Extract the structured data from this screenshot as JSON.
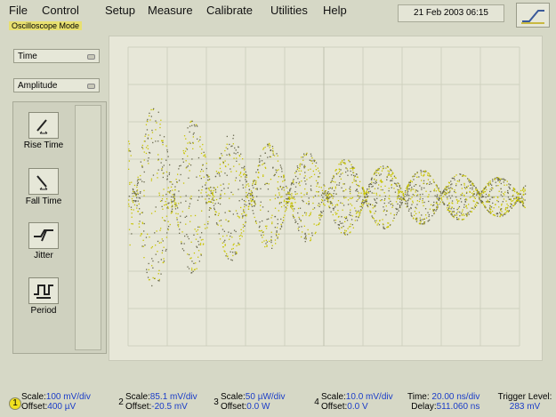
{
  "menu": [
    "File",
    "Control",
    "Setup",
    "Measure",
    "Calibrate",
    "Utilities",
    "Help"
  ],
  "datetime": "21 Feb 2003  06:15",
  "mode_label": "Oscilloscope Mode",
  "selectors": [
    "Time",
    "Amplitude"
  ],
  "buttons": [
    "Rise Time",
    "Fall Time",
    "Jitter",
    "Period"
  ],
  "channels": [
    {
      "number": "1",
      "scale_label": "Scale:",
      "scale": "100 mV/div",
      "offset_label": "Offset:",
      "offset": "400 µV"
    },
    {
      "number": "2",
      "scale_label": "Scale:",
      "scale": "85.1 mV/div",
      "offset_label": "Offset:",
      "offset": "-20.5 mV"
    },
    {
      "number": "3",
      "scale_label": "Scale:",
      "scale": "50 µW/div",
      "offset_label": "Offset:",
      "offset": "0.0 W"
    },
    {
      "number": "4",
      "scale_label": "Scale:",
      "scale": "10.0 mV/div",
      "offset_label": "Offset:",
      "offset": "0.0 V"
    }
  ],
  "timebase": {
    "time_label": "Time:",
    "time": "20.00 ns/div",
    "delay_label": "Delay:",
    "delay": "511.060 ns"
  },
  "trigger": {
    "label": "Trigger Level:",
    "value": "283 mV"
  }
}
